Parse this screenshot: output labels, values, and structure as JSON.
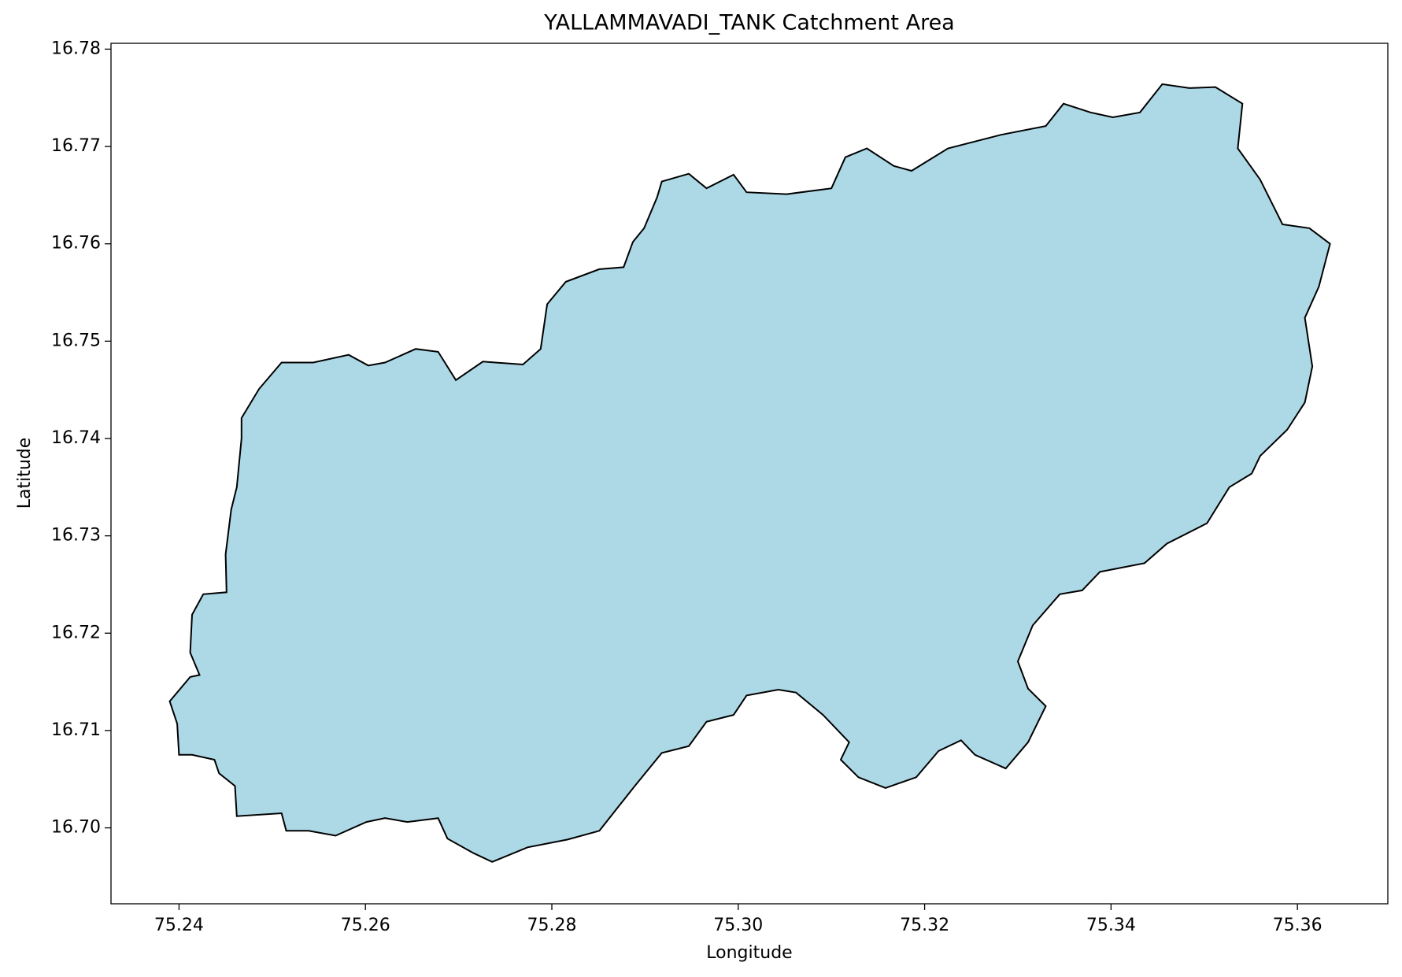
{
  "chart_data": {
    "type": "polygon",
    "title": "YALLAMMAVADI_TANK Catchment Area",
    "x_label": "Longitude",
    "y_label": "Latitude",
    "color": "#add8e6",
    "edge_color": "#000000",
    "xlim": [
      75.2327,
      75.3697
    ],
    "ylim": [
      16.6922,
      16.7806
    ],
    "xticks": [
      75.24,
      75.26,
      75.28,
      {
        "value": 75.3,
        "label": "75.30"
      },
      75.32,
      75.34,
      75.36
    ],
    "yticks": [
      {
        "value": 16.7,
        "label": "16.70"
      },
      16.71,
      16.72,
      16.73,
      16.74,
      16.75,
      16.76,
      16.77,
      16.78
    ],
    "x": [
      75.239,
      75.2412,
      75.2422,
      75.2412,
      75.2414,
      75.2426,
      75.2451,
      75.245,
      75.2456,
      75.2462,
      75.2467,
      75.2467,
      75.2486,
      75.251,
      75.2544,
      75.2582,
      75.2603,
      75.2621,
      75.2654,
      75.2678,
      75.2697,
      75.2726,
      75.2769,
      75.2788,
      75.2795,
      75.2815,
      75.2851,
      75.2877,
      75.2887,
      75.2899,
      75.2913,
      75.2918,
      75.2947,
      75.2966,
      75.2995,
      75.3009,
      75.3052,
      75.31,
      75.3115,
      75.3138,
      75.3167,
      75.3186,
      75.3225,
      75.3282,
      75.333,
      75.3349,
      75.3378,
      75.3402,
      75.3431,
      75.3455,
      75.3484,
      75.3512,
      75.3541,
      75.3536,
      75.356,
      75.3584,
      75.3613,
      75.3635,
      75.3623,
      75.3608,
      75.3616,
      75.3608,
      75.3589,
      75.356,
      75.3551,
      75.3527,
      75.3503,
      75.346,
      75.3436,
      75.3388,
      75.3369,
      75.3345,
      75.3316,
      75.33,
      75.3311,
      75.333,
      75.3311,
      75.3287,
      75.3254,
      75.3239,
      75.3215,
      75.3191,
      75.3158,
      75.3129,
      75.311,
      75.3119,
      75.3091,
      75.3062,
      75.3043,
      75.3009,
      75.2995,
      75.2966,
      75.2947,
      75.2918,
      75.2889,
      75.287,
      75.2851,
      75.2817,
      75.2774,
      75.2736,
      75.2716,
      75.2688,
      75.2678,
      75.2645,
      75.2621,
      75.2601,
      75.2568,
      75.2539,
      75.2515,
      75.251,
      75.2462,
      75.246,
      75.2443,
      75.2438,
      75.2414,
      75.24,
      75.2398
    ],
    "y": [
      16.713,
      16.7155,
      16.7157,
      16.718,
      16.7219,
      16.724,
      16.7242,
      16.7281,
      16.7327,
      16.735,
      16.74,
      16.7421,
      16.7451,
      16.7478,
      16.7478,
      16.7486,
      16.7475,
      16.7478,
      16.7492,
      16.7489,
      16.746,
      16.7479,
      16.7476,
      16.7492,
      16.7538,
      16.7561,
      16.7574,
      16.7576,
      16.7602,
      16.7616,
      16.7648,
      16.7664,
      16.7672,
      16.7657,
      16.7671,
      16.7653,
      16.7651,
      16.7657,
      16.7689,
      16.7698,
      16.768,
      16.7675,
      16.7698,
      16.7712,
      16.7721,
      16.7744,
      16.7735,
      16.773,
      16.7735,
      16.7764,
      16.776,
      16.7761,
      16.7744,
      16.7698,
      16.7666,
      16.762,
      16.7616,
      16.76,
      16.7556,
      16.7524,
      16.7474,
      16.7437,
      16.7409,
      16.7382,
      16.7364,
      16.735,
      16.7313,
      16.7292,
      16.7272,
      16.7263,
      16.7244,
      16.724,
      16.7208,
      16.7171,
      16.7143,
      16.7125,
      16.7088,
      16.7061,
      16.7075,
      16.709,
      16.7079,
      16.7052,
      16.7041,
      16.7052,
      16.707,
      16.7088,
      16.7116,
      16.7139,
      16.7142,
      16.7136,
      16.7116,
      16.7109,
      16.7084,
      16.7077,
      16.7043,
      16.702,
      16.6997,
      16.6988,
      16.698,
      16.6965,
      16.6974,
      16.6989,
      16.701,
      16.7006,
      16.701,
      16.7006,
      16.6992,
      16.6997,
      16.6997,
      16.7015,
      16.7012,
      16.7043,
      16.7056,
      16.707,
      16.7075,
      16.7075,
      16.7107
    ]
  }
}
